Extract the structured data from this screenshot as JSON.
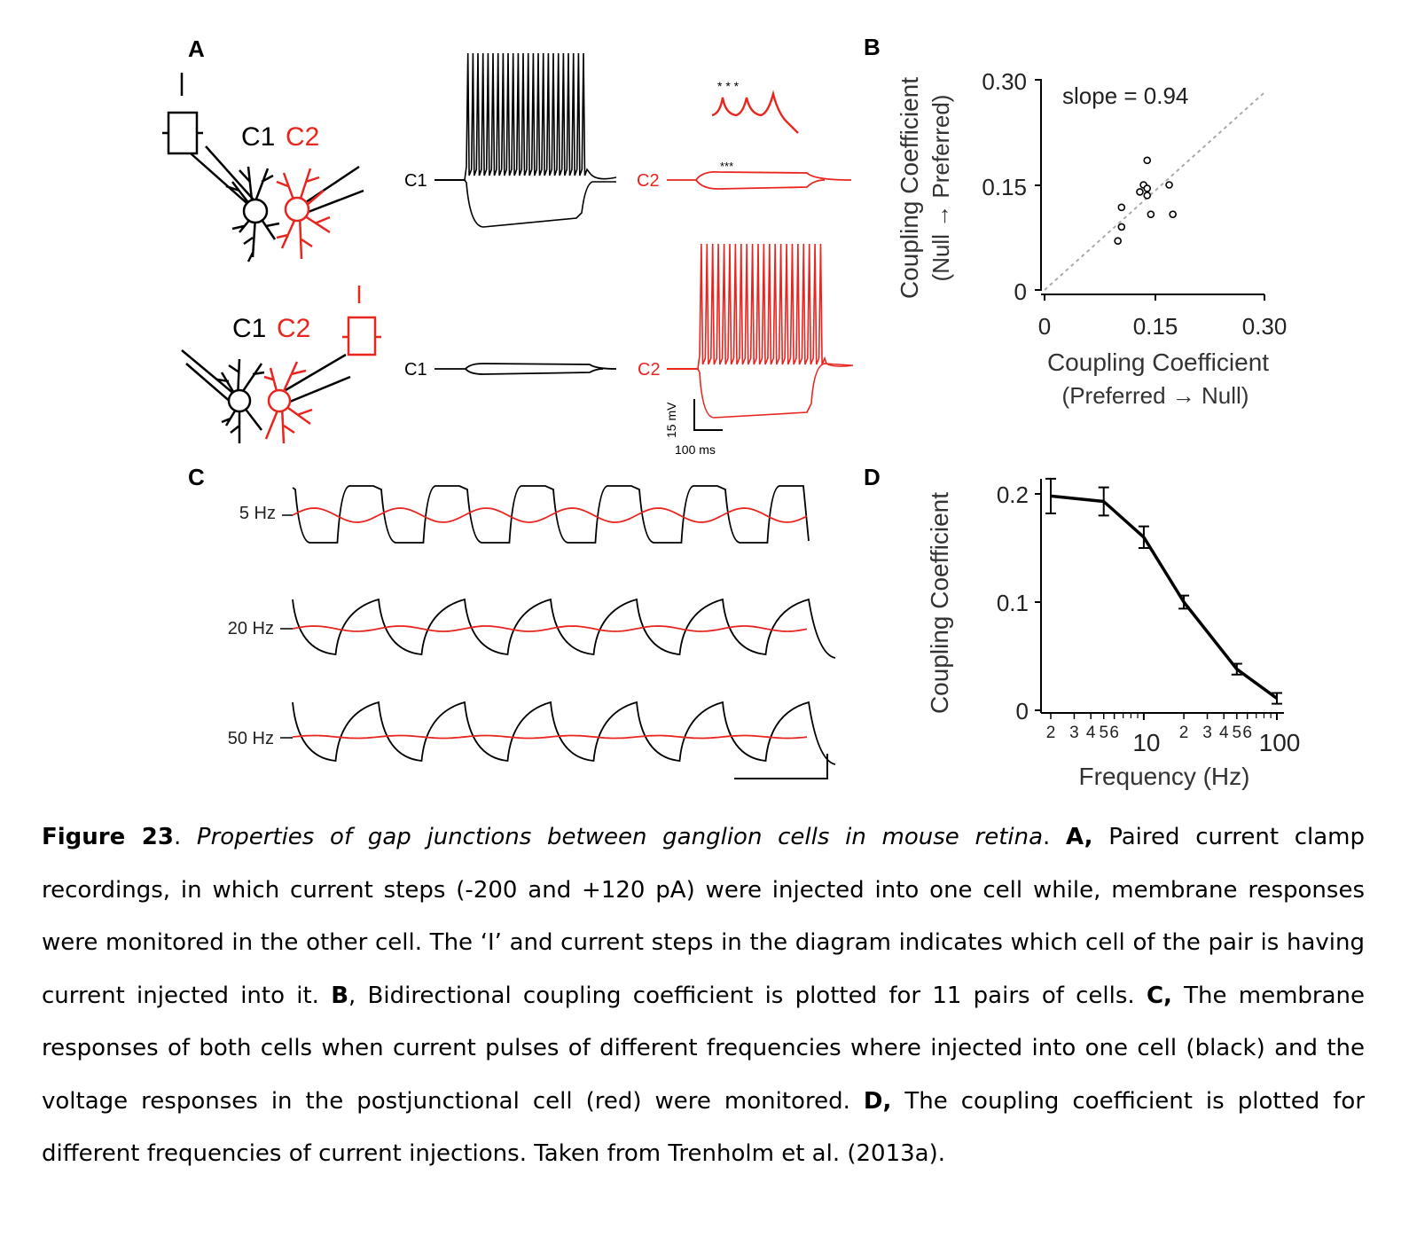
{
  "colors": {
    "postjunctional": "#e8251f",
    "injected": "#000000",
    "diagonal": "#aaaaaa"
  },
  "panel_a": {
    "letter": "A",
    "top_cell_labels": [
      "C1",
      "C2"
    ],
    "bottom_cell_labels": [
      "C1",
      "C2"
    ],
    "trace_label_c1": "C1",
    "trace_label_c2": "C2",
    "inject_symbol": "I",
    "spike_marks": "* * *",
    "spike_marks_small": "***",
    "scale_v": "15 mV",
    "scale_t": "100 ms"
  },
  "panel_c": {
    "letter": "C",
    "rows": [
      {
        "freq": "5 Hz"
      },
      {
        "freq": "20 Hz"
      },
      {
        "freq": "50 Hz"
      }
    ]
  },
  "chart_data": [
    {
      "panel": "B",
      "type": "scatter",
      "annotation": "slope = 0.94",
      "xlabel": "Coupling Coefficient",
      "xlabel_sub": "(Preferred → Null)",
      "ylabel": "Coupling Coefficient",
      "ylabel_sub": "(Null → Preferred)",
      "xlim": [
        0,
        0.3
      ],
      "ylim": [
        0,
        0.3
      ],
      "xticks": [
        "0",
        "0.15",
        "0.30"
      ],
      "yticks": [
        "0",
        "0.15",
        "0.30"
      ],
      "points": [
        {
          "x": 0.1,
          "y": 0.07
        },
        {
          "x": 0.105,
          "y": 0.09
        },
        {
          "x": 0.105,
          "y": 0.118
        },
        {
          "x": 0.13,
          "y": 0.14
        },
        {
          "x": 0.135,
          "y": 0.15
        },
        {
          "x": 0.14,
          "y": 0.145
        },
        {
          "x": 0.14,
          "y": 0.185
        },
        {
          "x": 0.14,
          "y": 0.135
        },
        {
          "x": 0.145,
          "y": 0.108
        },
        {
          "x": 0.17,
          "y": 0.15
        },
        {
          "x": 0.175,
          "y": 0.108
        }
      ],
      "diagonal_slope": 0.94
    },
    {
      "panel": "D",
      "type": "line",
      "xscale": "log",
      "xlabel": "Frequency (Hz)",
      "ylabel": "Coupling Coefficient",
      "xlim": [
        2,
        100
      ],
      "ylim": [
        0,
        0.2
      ],
      "yticks": [
        "0",
        "0.1",
        "0.2"
      ],
      "xtick_major": [
        "10",
        "100"
      ],
      "xtick_minor": [
        "2",
        "3",
        "4",
        "5",
        "6",
        "2",
        "3",
        "4",
        "5",
        "6"
      ],
      "x": [
        2,
        5,
        10,
        20,
        50,
        100
      ],
      "y": [
        0.198,
        0.193,
        0.16,
        0.1,
        0.038,
        0.011
      ],
      "err": [
        0.016,
        0.013,
        0.01,
        0.006,
        0.005,
        0.005
      ]
    }
  ],
  "caption": {
    "fig_label": "Figure 23",
    "title": "Properties of gap junctions between ganglion cells in mouse retina",
    "a_label": "A,",
    "a_text": " Paired current clamp recordings, in which current steps (-200 and +120 pA) were injected into one cell while, membrane responses were monitored in the other cell. The ‘I’ and current steps in the diagram indicates which cell of the pair is having current injected into it. ",
    "b_label": "B",
    "b_text": ", Bidirectional coupling coefficient is plotted for 11 pairs of cells. ",
    "c_label": "C,",
    "c_text": " The membrane responses of both cells when current pulses of different frequencies where injected into one cell (black) and the voltage responses in the postjunctional cell (red) were monitored. ",
    "d_label": "D,",
    "d_text": " The coupling coefficient is plotted for different frequencies of current injections. Taken from Trenholm et al. (2013a)."
  }
}
